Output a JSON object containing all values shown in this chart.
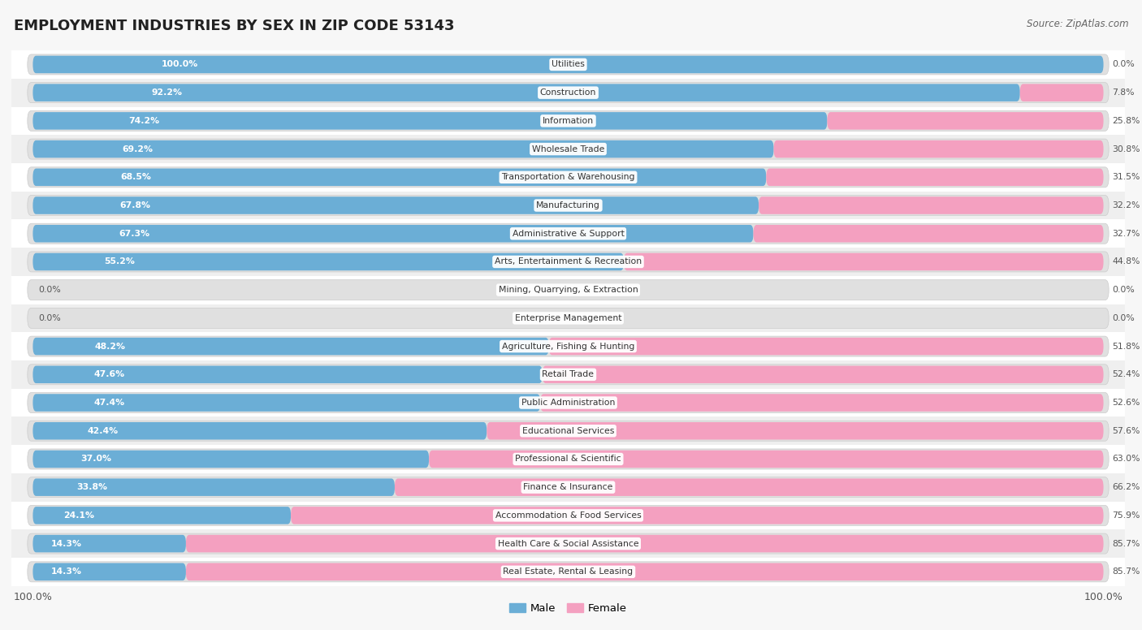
{
  "title": "EMPLOYMENT INDUSTRIES BY SEX IN ZIP CODE 53143",
  "source": "Source: ZipAtlas.com",
  "male_color": "#6baed6",
  "female_color": "#f4a0c0",
  "track_color": "#e8e8e8",
  "bg_color": "#f7f7f7",
  "row_colors": [
    "#ffffff",
    "#efefef"
  ],
  "label_box_color": "#ffffff",
  "categories": [
    "Utilities",
    "Construction",
    "Information",
    "Wholesale Trade",
    "Transportation & Warehousing",
    "Manufacturing",
    "Administrative & Support",
    "Arts, Entertainment & Recreation",
    "Mining, Quarrying, & Extraction",
    "Enterprise Management",
    "Agriculture, Fishing & Hunting",
    "Retail Trade",
    "Public Administration",
    "Educational Services",
    "Professional & Scientific",
    "Finance & Insurance",
    "Accommodation & Food Services",
    "Health Care & Social Assistance",
    "Real Estate, Rental & Leasing"
  ],
  "male_pct": [
    100.0,
    92.2,
    74.2,
    69.2,
    68.5,
    67.8,
    67.3,
    55.2,
    0.0,
    0.0,
    48.2,
    47.6,
    47.4,
    42.4,
    37.0,
    33.8,
    24.1,
    14.3,
    14.3
  ],
  "female_pct": [
    0.0,
    7.8,
    25.8,
    30.8,
    31.5,
    32.2,
    32.7,
    44.8,
    0.0,
    0.0,
    51.8,
    52.4,
    52.6,
    57.6,
    63.0,
    66.2,
    75.9,
    85.7,
    85.7
  ]
}
